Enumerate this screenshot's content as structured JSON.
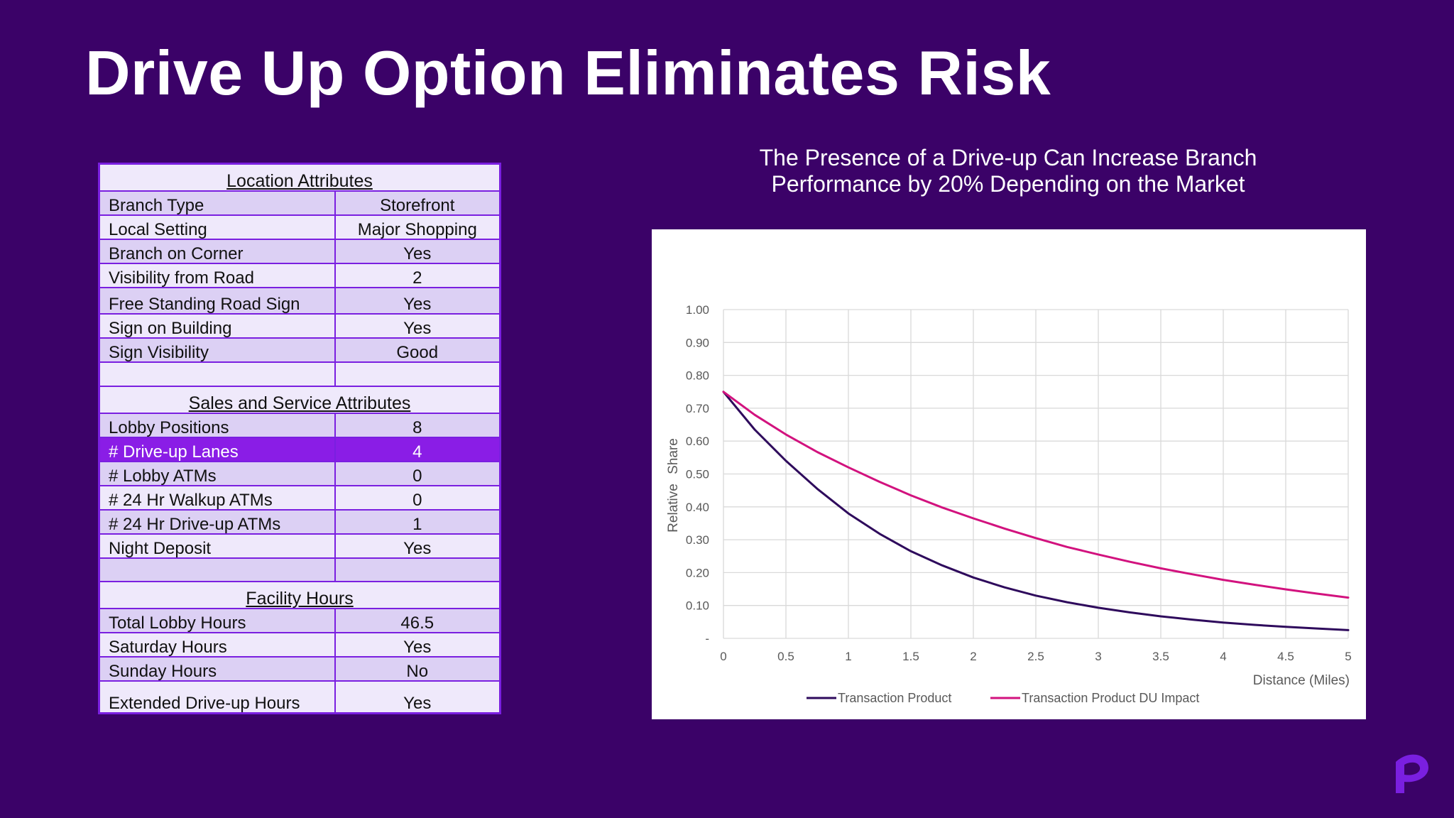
{
  "page": {
    "title": "Drive Up Option Eliminates Risk"
  },
  "table": {
    "sections": [
      {
        "header": "Location Attributes",
        "rows": [
          {
            "label": "Branch Type",
            "value": "Storefront"
          },
          {
            "label": "Local Setting",
            "value": "Major Shopping"
          },
          {
            "label": "Branch on Corner",
            "value": "Yes"
          },
          {
            "label": "Visibility from Road",
            "value": "2"
          },
          {
            "label": "Free Standing Road Sign",
            "value": "Yes"
          },
          {
            "label": "Sign on Building",
            "value": "Yes"
          },
          {
            "label": "Sign Visibility",
            "value": "Good"
          },
          {
            "label": "",
            "value": ""
          }
        ]
      },
      {
        "header": "Sales and Service Attributes",
        "rows": [
          {
            "label": "Lobby Positions",
            "value": "8"
          },
          {
            "label": "# Drive-up Lanes",
            "value": "4",
            "highlight": true
          },
          {
            "label": "# Lobby ATMs",
            "value": "0"
          },
          {
            "label": "# 24 Hr Walkup ATMs",
            "value": "0"
          },
          {
            "label": "# 24 Hr Drive-up ATMs",
            "value": "1"
          },
          {
            "label": "Night Deposit",
            "value": "Yes"
          },
          {
            "label": "",
            "value": ""
          }
        ]
      },
      {
        "header": "Facility Hours",
        "rows": [
          {
            "label": "Total Lobby Hours",
            "value": "46.5"
          },
          {
            "label": "Saturday Hours",
            "value": "Yes"
          },
          {
            "label": "Sunday Hours",
            "value": "No"
          },
          {
            "label": "Extended Drive-up Hours",
            "value": "Yes"
          }
        ]
      }
    ]
  },
  "chart_data": {
    "type": "line",
    "title": "The Presence of a Drive-up Can Increase Branch Performance by 20% Depending on the Market",
    "title_lines": [
      "The Presence of a Drive-up Can Increase Branch",
      "Performance by 20% Depending on the Market"
    ],
    "xlabel": "Distance (Miles)",
    "ylabel": "Relative Share",
    "xlim": [
      0,
      5
    ],
    "ylim": [
      0,
      1.0
    ],
    "x_ticks": [
      "0",
      "0.5",
      "1",
      "1.5",
      "2",
      "2.5",
      "3",
      "3.5",
      "4",
      "4.5",
      "5"
    ],
    "y_ticks": [
      "-",
      "0.10",
      "0.20",
      "0.30",
      "0.40",
      "0.50",
      "0.60",
      "0.70",
      "0.80",
      "0.90",
      "1.00"
    ],
    "grid": true,
    "legend_position": "bottom",
    "x": [
      0,
      0.25,
      0.5,
      0.75,
      1,
      1.25,
      1.5,
      1.75,
      2,
      2.25,
      2.5,
      2.75,
      3,
      3.25,
      3.5,
      3.75,
      4,
      4.25,
      4.5,
      4.75,
      5
    ],
    "series": [
      {
        "name": "Transaction Product",
        "color": "#2e0a5c",
        "values": [
          0.75,
          0.635,
          0.54,
          0.455,
          0.38,
          0.318,
          0.265,
          0.222,
          0.185,
          0.155,
          0.13,
          0.11,
          0.093,
          0.079,
          0.067,
          0.057,
          0.048,
          0.041,
          0.035,
          0.03,
          0.025
        ]
      },
      {
        "name": "Transaction Product DU Impact",
        "color": "#d2127e",
        "values": [
          0.75,
          0.68,
          0.62,
          0.567,
          0.52,
          0.476,
          0.435,
          0.398,
          0.365,
          0.334,
          0.305,
          0.278,
          0.255,
          0.233,
          0.213,
          0.195,
          0.178,
          0.163,
          0.149,
          0.136,
          0.124
        ]
      }
    ]
  },
  "colors": {
    "background": "#3b0268",
    "table_border": "#7a1fe0",
    "row_dark": "#dcd0f4",
    "row_light": "#efe9fb",
    "highlight": "#8a1de6",
    "logo": "#7a1fe0"
  }
}
